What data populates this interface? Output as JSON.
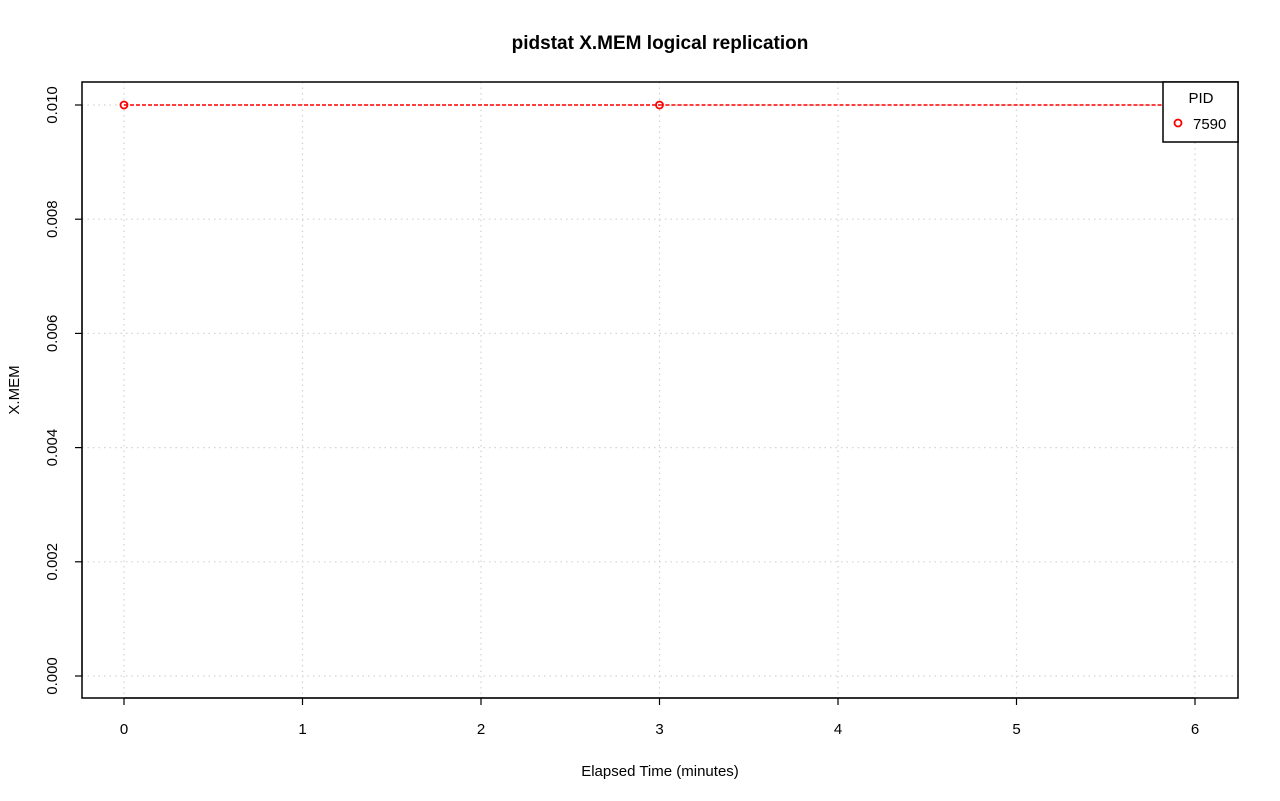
{
  "chart_data": {
    "type": "line",
    "title": "pidstat X.MEM logical replication",
    "xlabel": "Elapsed Time (minutes)",
    "ylabel": "X.MEM",
    "xlim": [
      0,
      6
    ],
    "ylim": [
      0,
      0.01
    ],
    "x_ticks": [
      0,
      1,
      2,
      3,
      4,
      5,
      6
    ],
    "x_tick_labels": [
      "0",
      "1",
      "2",
      "3",
      "4",
      "5",
      "6"
    ],
    "y_ticks": [
      0,
      0.002,
      0.004,
      0.006,
      0.008,
      0.01
    ],
    "y_tick_labels": [
      "0.000",
      "0.002",
      "0.004",
      "0.006",
      "0.008",
      "0.010"
    ],
    "grid": true,
    "legend": {
      "title": "PID",
      "placement": "top-right"
    },
    "series": [
      {
        "name": "7590",
        "color": "#ff0000",
        "marker": "open-circle",
        "line_style": "dashed",
        "x": [
          0,
          3,
          6
        ],
        "y": [
          0.01,
          0.01,
          0.01
        ]
      }
    ]
  }
}
